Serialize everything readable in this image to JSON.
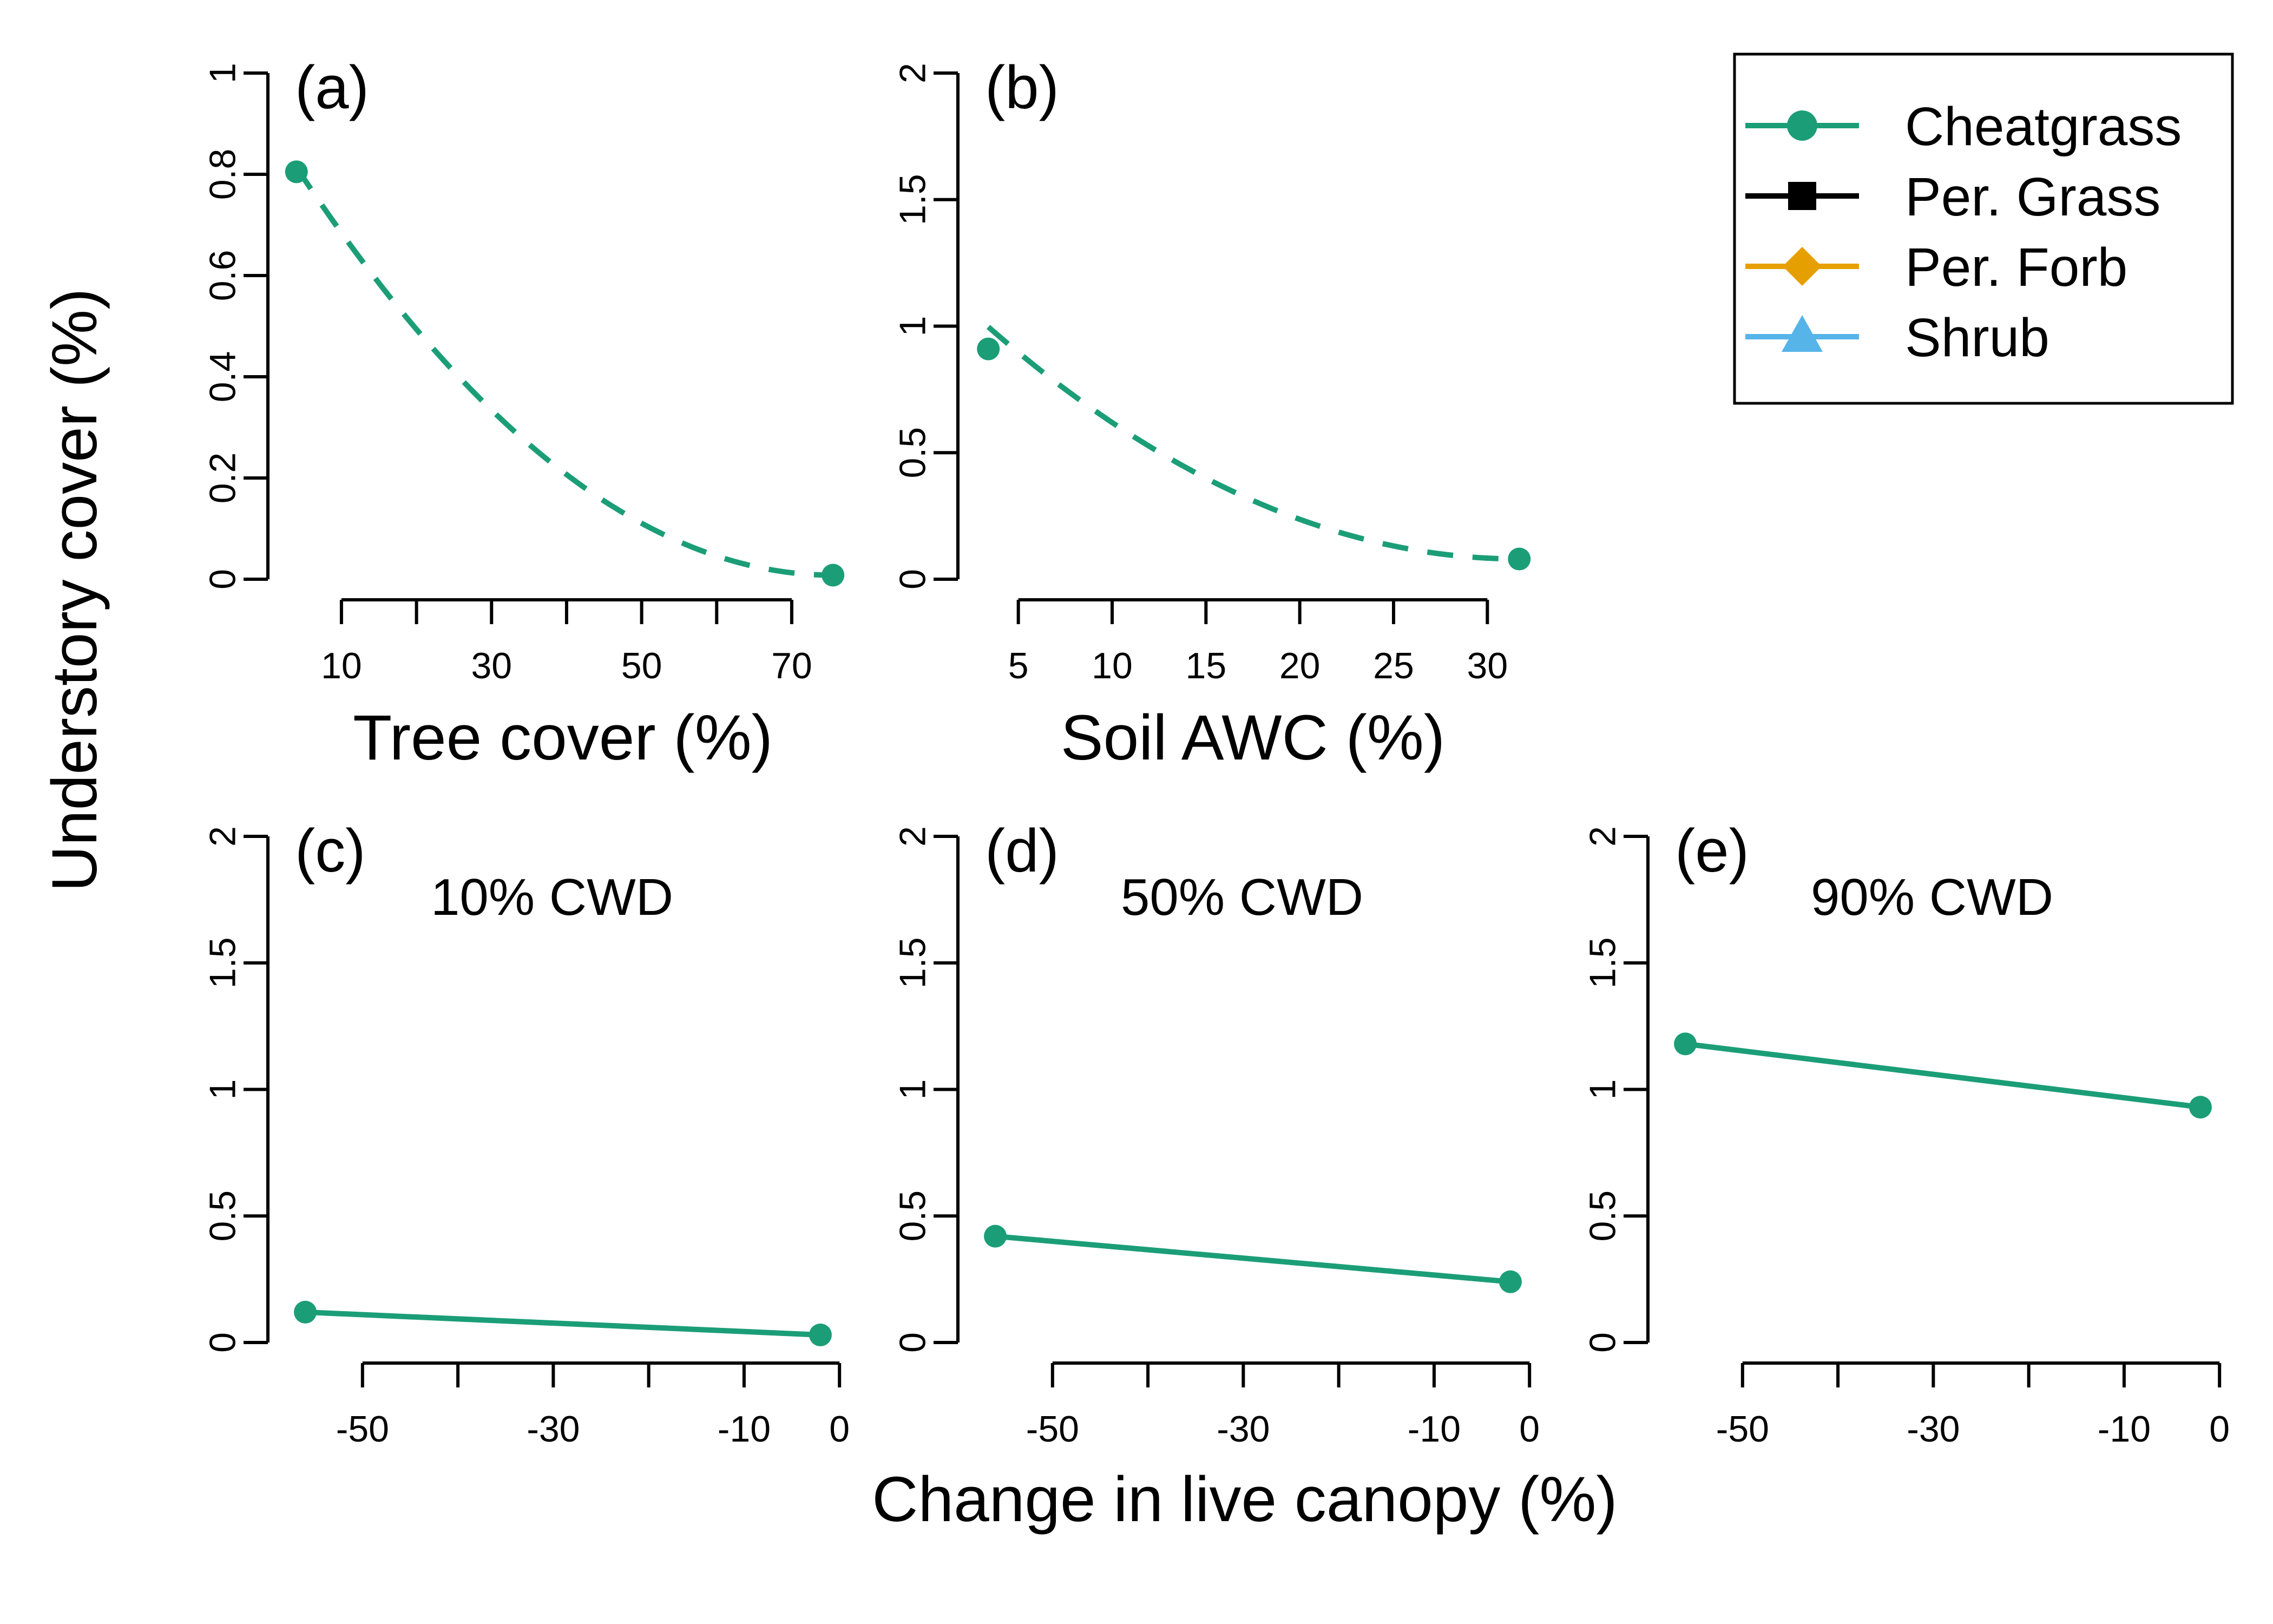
{
  "ylabel": "Understory cover (%)",
  "colors": {
    "cheatgrass": "#1b9e77",
    "per_grass": "#000000",
    "per_forb": "#e69f00",
    "shrub": "#56b4e9"
  },
  "legend": {
    "placement": "top-right",
    "entries": [
      {
        "label": "Cheatgrass",
        "color": "#1b9e77",
        "marker": "circle"
      },
      {
        "label": "Per. Grass",
        "color": "#000000",
        "marker": "square"
      },
      {
        "label": "Per. Forb",
        "color": "#e69f00",
        "marker": "diamond"
      },
      {
        "label": "Shrub",
        "color": "#56b4e9",
        "marker": "triangle"
      }
    ]
  },
  "bottom_xlabel": "Change in live canopy (%)",
  "chart_data": [
    {
      "type": "line",
      "label": "(a)",
      "subtitle": "",
      "xlabel": "Tree cover (%)",
      "xlim": [
        2,
        77
      ],
      "ylim": [
        0,
        1
      ],
      "xticks_major": [
        10,
        30,
        50,
        70
      ],
      "xticks_minor": [
        20,
        40,
        60
      ],
      "yticks": [
        0,
        0.2,
        0.4,
        0.6,
        0.8,
        1
      ],
      "ytick_labels": [
        "0",
        "0.2",
        "0.4",
        "0.6",
        "0.8",
        "1"
      ],
      "series": [
        {
          "name": "Cheatgrass",
          "line": "dashed",
          "x": [
            4,
            75.5
          ],
          "y": [
            0.805,
            0.008
          ],
          "a": 0.806
        }
      ]
    },
    {
      "type": "line",
      "label": "(b)",
      "subtitle": "",
      "xlabel": "Soil AWC (%)",
      "xlim": [
        2.5,
        32.5
      ],
      "ylim": [
        0,
        2
      ],
      "xticks_major": [
        5,
        10,
        15,
        20,
        25,
        30
      ],
      "xticks_minor": [],
      "yticks": [
        0,
        0.5,
        1,
        1.5,
        2
      ],
      "ytick_labels": [
        "0",
        "0.5",
        "1",
        "1.5",
        "2"
      ],
      "series": [
        {
          "name": "Cheatgrass",
          "line": "dashed",
          "x": [
            3.4,
            31.7
          ],
          "y": [
            0.91,
            0.08
          ],
          "a": 0.917
        }
      ]
    },
    {
      "type": "line",
      "label": "(c)",
      "subtitle": "10% CWD",
      "xlabel": "",
      "xlim": [
        -58.5,
        0.5
      ],
      "ylim": [
        0,
        2
      ],
      "xticks_major": [
        -50,
        -30,
        -10,
        0
      ],
      "xticks_minor": [
        -40,
        -20
      ],
      "yticks": [
        0,
        0.5,
        1,
        1.5,
        2
      ],
      "ytick_labels": [
        "0",
        "0.5",
        "1",
        "1.5",
        "2"
      ],
      "series": [
        {
          "name": "Cheatgrass",
          "line": "solid",
          "x": [
            -56,
            -2
          ],
          "y": [
            0.12,
            0.03
          ]
        }
      ]
    },
    {
      "type": "line",
      "label": "(d)",
      "subtitle": "50% CWD",
      "xlabel": "",
      "xlim": [
        -58.5,
        0.5
      ],
      "ylim": [
        0,
        2
      ],
      "xticks_major": [
        -50,
        -30,
        -10,
        0
      ],
      "xticks_minor": [
        -40,
        -20
      ],
      "yticks": [
        0,
        0.5,
        1,
        1.5,
        2
      ],
      "ytick_labels": [
        "0",
        "0.5",
        "1",
        "1.5",
        "2"
      ],
      "series": [
        {
          "name": "Cheatgrass",
          "line": "solid",
          "x": [
            -56,
            -2
          ],
          "y": [
            0.42,
            0.24
          ]
        }
      ]
    },
    {
      "type": "line",
      "label": "(e)",
      "subtitle": "90% CWD",
      "xlabel": "",
      "xlim": [
        -58.5,
        0.5
      ],
      "ylim": [
        0,
        2
      ],
      "xticks_major": [
        -50,
        -30,
        -10,
        0
      ],
      "xticks_minor": [
        -40,
        -20
      ],
      "yticks": [
        0,
        0.5,
        1,
        1.5,
        2
      ],
      "ytick_labels": [
        "0",
        "0.5",
        "1",
        "1.5",
        "2"
      ],
      "series": [
        {
          "name": "Cheatgrass",
          "line": "solid",
          "x": [
            -56,
            -2
          ],
          "y": [
            1.18,
            0.93
          ]
        }
      ]
    }
  ]
}
